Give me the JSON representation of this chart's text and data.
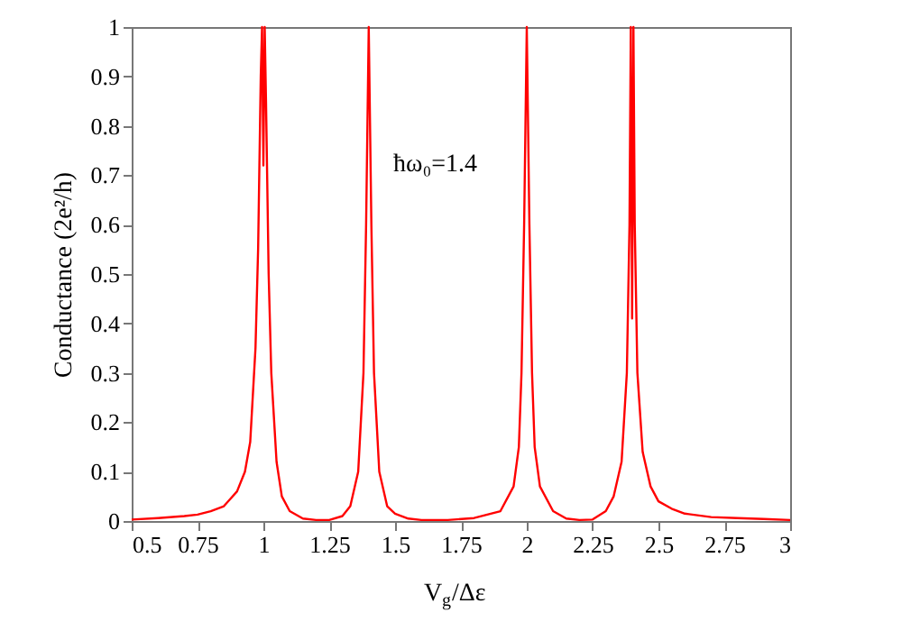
{
  "chart_data": {
    "type": "line",
    "xlabel": "V$_{g}$/Δε",
    "ylabel": "Conductance (2e²/h)",
    "annotations": [
      "ħω₀=1.4"
    ],
    "series": [
      {
        "color": "#ff0000",
        "x": [
          0.5,
          0.6,
          0.7,
          0.75,
          0.8,
          0.85,
          0.9,
          0.93,
          0.95,
          0.97,
          0.98,
          0.99,
          0.995,
          1.0,
          1.005,
          1.01,
          1.02,
          1.03,
          1.05,
          1.07,
          1.1,
          1.15,
          1.2,
          1.25,
          1.3,
          1.33,
          1.36,
          1.38,
          1.39,
          1.4,
          1.41,
          1.42,
          1.44,
          1.47,
          1.5,
          1.55,
          1.6,
          1.7,
          1.8,
          1.9,
          1.95,
          1.97,
          1.98,
          1.99,
          2.0,
          2.01,
          2.02,
          2.03,
          2.05,
          2.1,
          2.15,
          2.2,
          2.25,
          2.3,
          2.33,
          2.36,
          2.38,
          2.39,
          2.395,
          2.4,
          2.405,
          2.41,
          2.42,
          2.44,
          2.47,
          2.5,
          2.55,
          2.6,
          2.7,
          2.8,
          2.9,
          3.0
        ],
        "values": [
          0.003,
          0.006,
          0.01,
          0.013,
          0.02,
          0.03,
          0.06,
          0.1,
          0.16,
          0.35,
          0.55,
          0.9,
          1.0,
          0.72,
          1.0,
          0.85,
          0.5,
          0.3,
          0.12,
          0.05,
          0.02,
          0.005,
          0.002,
          0.002,
          0.01,
          0.03,
          0.1,
          0.3,
          0.6,
          1.0,
          0.6,
          0.3,
          0.1,
          0.03,
          0.015,
          0.005,
          0.002,
          0.002,
          0.006,
          0.02,
          0.07,
          0.15,
          0.3,
          0.6,
          1.0,
          0.6,
          0.3,
          0.15,
          0.07,
          0.02,
          0.005,
          0.002,
          0.003,
          0.02,
          0.05,
          0.12,
          0.3,
          0.6,
          1.0,
          0.41,
          1.0,
          0.6,
          0.3,
          0.14,
          0.07,
          0.04,
          0.025,
          0.015,
          0.008,
          0.006,
          0.004,
          0.002
        ]
      }
    ],
    "xlim": [
      0.5,
      3
    ],
    "xticks": [
      0.5,
      0.75,
      1,
      1.25,
      1.5,
      1.75,
      2,
      2.25,
      2.5,
      2.75,
      3
    ],
    "ylim": [
      0,
      1
    ],
    "yticks": [
      0,
      0.1,
      0.2,
      0.3,
      0.4,
      0.5,
      0.6,
      0.7,
      0.8,
      0.9,
      1
    ],
    "grid": false,
    "marker": "none",
    "line_style": "solid"
  }
}
